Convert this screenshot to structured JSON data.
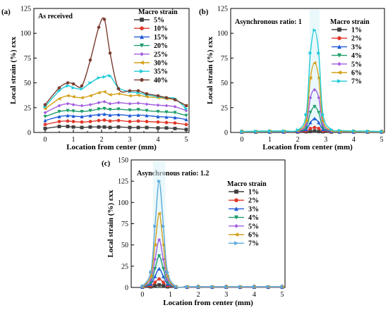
{
  "chart_data": [
    {
      "type": "line",
      "panel_label": "(a)",
      "annotation": "As received",
      "xlabel": "Location from center (mm)",
      "ylabel": "Local strain (%) εxx",
      "xlim": [
        -0.4,
        5.1
      ],
      "ylim": [
        0,
        125
      ],
      "xticks": [
        "0",
        "1",
        "2",
        "3",
        "4",
        "5"
      ],
      "yticks": [
        "0",
        "25",
        "50",
        "75",
        "100",
        "125"
      ],
      "legend_title": "Macro strain",
      "legend_position": "top-right",
      "x": [
        0,
        0.5,
        0.8,
        1.0,
        1.3,
        1.6,
        1.9,
        2.1,
        2.3,
        2.6,
        3.0,
        3.3,
        3.6,
        4.0,
        4.3,
        4.6,
        5.0
      ],
      "series": [
        {
          "name": "5%",
          "color": "#404040",
          "marker": "square",
          "values": [
            4,
            6,
            6,
            5.5,
            5,
            5.5,
            5.5,
            5.5,
            5,
            5.5,
            5,
            5,
            5,
            4.5,
            4.5,
            4,
            3
          ]
        },
        {
          "name": "10%",
          "color": "#e0382b",
          "marker": "circle",
          "values": [
            8,
            11,
            11.5,
            11,
            10.5,
            11,
            12,
            12.5,
            11.5,
            12,
            11,
            11.5,
            11,
            10.5,
            10,
            9.5,
            8
          ]
        },
        {
          "name": "15%",
          "color": "#1f5bd6",
          "marker": "triangle",
          "values": [
            12,
            16,
            17,
            16.5,
            16,
            17,
            18,
            18.5,
            17.5,
            18,
            17,
            17.5,
            17,
            16,
            15.5,
            15,
            13
          ]
        },
        {
          "name": "20%",
          "color": "#1f9e6a",
          "marker": "tri-down",
          "values": [
            16,
            21,
            22,
            21.5,
            21,
            22,
            23.5,
            24,
            23,
            23.5,
            22.5,
            23,
            22,
            21,
            20.5,
            20,
            17
          ]
        },
        {
          "name": "25%",
          "color": "#a35ee0",
          "marker": "diamond",
          "values": [
            20,
            27,
            29,
            28,
            27,
            28,
            30,
            31,
            29,
            30,
            29,
            29.5,
            28.5,
            27.5,
            27,
            26,
            22
          ]
        },
        {
          "name": "30%",
          "color": "#d4a017",
          "marker": "tri-left",
          "values": [
            24,
            34,
            37,
            36,
            35,
            37,
            40,
            41,
            38,
            39,
            37,
            37.5,
            36,
            35,
            34,
            33,
            27
          ]
        },
        {
          "name": "35%",
          "color": "#1ecbd6",
          "marker": "tri-right",
          "values": [
            26,
            42,
            47,
            45,
            44,
            50,
            55,
            56,
            57,
            45,
            41,
            40,
            38,
            36,
            35,
            34,
            24
          ]
        },
        {
          "name": "40%",
          "color": "#7a3b30",
          "marker": "hexagon",
          "values": [
            28,
            45,
            50,
            49,
            47,
            73,
            106,
            114,
            80,
            44,
            42,
            42,
            39,
            37,
            35,
            33,
            27
          ]
        }
      ]
    },
    {
      "type": "line",
      "panel_label": "(b)",
      "annotation": "Asynchronous ratio: 1",
      "xlabel": "Location from center (mm)",
      "ylabel": "Local strain (%) εxx",
      "xlim": [
        -0.4,
        5.1
      ],
      "ylim": [
        0,
        125
      ],
      "xticks": [
        "0",
        "1",
        "2",
        "3",
        "4",
        "5"
      ],
      "yticks": [
        "0",
        "25",
        "50",
        "75",
        "100",
        "125"
      ],
      "legend_title": "Macro strain",
      "legend_position": "top-right",
      "x": [
        0,
        0.5,
        1.0,
        1.5,
        2.0,
        2.3,
        2.45,
        2.6,
        2.75,
        2.9,
        3.2,
        3.5,
        4.0,
        4.5,
        5.0
      ],
      "series": [
        {
          "name": "1%",
          "color": "#404040",
          "marker": "square",
          "values": [
            0.5,
            0.5,
            0.5,
            0.5,
            0.5,
            0.8,
            1,
            1.5,
            1,
            0.8,
            0.5,
            0.5,
            0.5,
            0.5,
            0.5
          ]
        },
        {
          "name": "2%",
          "color": "#e0382b",
          "marker": "circle",
          "values": [
            0.5,
            0.5,
            0.5,
            0.5,
            0.6,
            1.5,
            4,
            5,
            4,
            1.5,
            0.6,
            0.5,
            0.5,
            0.5,
            0.5
          ]
        },
        {
          "name": "3%",
          "color": "#1f5bd6",
          "marker": "triangle",
          "values": [
            0.5,
            0.5,
            0.5,
            0.6,
            1,
            3,
            10,
            14,
            10,
            3,
            1,
            0.6,
            0.5,
            0.5,
            0.5
          ]
        },
        {
          "name": "4%",
          "color": "#1f9e6a",
          "marker": "tri-down",
          "values": [
            0.5,
            0.6,
            0.7,
            0.8,
            1.2,
            5,
            20,
            26,
            20,
            5,
            1.2,
            0.8,
            0.6,
            0.5,
            0.5
          ]
        },
        {
          "name": "5%",
          "color": "#a35ee0",
          "marker": "diamond",
          "values": [
            0.6,
            0.8,
            0.9,
            1,
            1.5,
            8,
            35,
            43,
            35,
            8,
            1.5,
            1,
            0.8,
            0.7,
            0.6
          ]
        },
        {
          "name": "6%",
          "color": "#d4a017",
          "marker": "tri-left",
          "values": [
            0.8,
            1,
            1.1,
            1.2,
            2,
            12,
            55,
            70,
            55,
            12,
            2,
            1.2,
            1,
            0.9,
            0.8
          ]
        },
        {
          "name": "7%",
          "color": "#1ecbd6",
          "marker": "tri-right",
          "values": [
            1,
            1.3,
            1.5,
            1.6,
            2.5,
            18,
            80,
            103,
            80,
            18,
            3,
            2,
            1.5,
            1.3,
            1
          ]
        }
      ]
    },
    {
      "type": "line",
      "panel_label": "(c)",
      "annotation": "Asynchronous ratio: 1.2",
      "xlabel": "Location from center (mm)",
      "ylabel": "Local strain (%) εxx",
      "xlim": [
        -0.4,
        5.1
      ],
      "ylim": [
        0,
        150
      ],
      "xticks": [
        "0",
        "1",
        "2",
        "3",
        "4",
        "5"
      ],
      "yticks": [
        "0",
        "25",
        "50",
        "75",
        "100",
        "125",
        "150"
      ],
      "legend_title": "Macro strain",
      "legend_position": "top-right",
      "x": [
        0,
        0.3,
        0.45,
        0.6,
        0.75,
        0.9,
        1.2,
        1.6,
        2.0,
        2.5,
        3.0,
        3.5,
        4.0,
        4.5,
        5.0
      ],
      "series": [
        {
          "name": "1%",
          "color": "#404040",
          "marker": "square",
          "values": [
            0.3,
            0.8,
            2,
            3,
            2,
            0.8,
            0.3,
            0.3,
            0.3,
            0.3,
            0.3,
            0.3,
            0.3,
            0.3,
            0.3
          ]
        },
        {
          "name": "2%",
          "color": "#e0382b",
          "marker": "circle",
          "values": [
            0.4,
            2,
            6,
            10,
            6,
            2,
            0.4,
            0.3,
            0.3,
            0.3,
            0.3,
            0.3,
            0.3,
            0.3,
            0.3
          ]
        },
        {
          "name": "3%",
          "color": "#1f5bd6",
          "marker": "triangle",
          "values": [
            0.5,
            4,
            13,
            22,
            13,
            4,
            0.5,
            0.4,
            0.4,
            0.4,
            0.4,
            0.4,
            0.4,
            0.4,
            0.4
          ]
        },
        {
          "name": "4%",
          "color": "#1f9e6a",
          "marker": "tri-down",
          "values": [
            0.6,
            6,
            22,
            37,
            22,
            6,
            0.6,
            0.5,
            0.5,
            0.5,
            0.5,
            0.5,
            0.5,
            0.5,
            0.5
          ]
        },
        {
          "name": "5%",
          "color": "#a35ee0",
          "marker": "diamond",
          "values": [
            0.8,
            9,
            33,
            56,
            33,
            9,
            0.8,
            0.6,
            0.6,
            0.6,
            0.6,
            0.6,
            0.6,
            0.6,
            0.6
          ]
        },
        {
          "name": "6%",
          "color": "#d4a017",
          "marker": "tri-left",
          "values": [
            1,
            13,
            50,
            87,
            50,
            13,
            1,
            0.8,
            0.8,
            0.8,
            0.8,
            0.8,
            0.8,
            0.8,
            0.8
          ]
        },
        {
          "name": "7%",
          "color": "#5aa9d8",
          "marker": "tri-right",
          "values": [
            1.2,
            18,
            72,
            125,
            72,
            18,
            1.2,
            1,
            1,
            1,
            1,
            1,
            1,
            1,
            1
          ]
        }
      ]
    }
  ]
}
